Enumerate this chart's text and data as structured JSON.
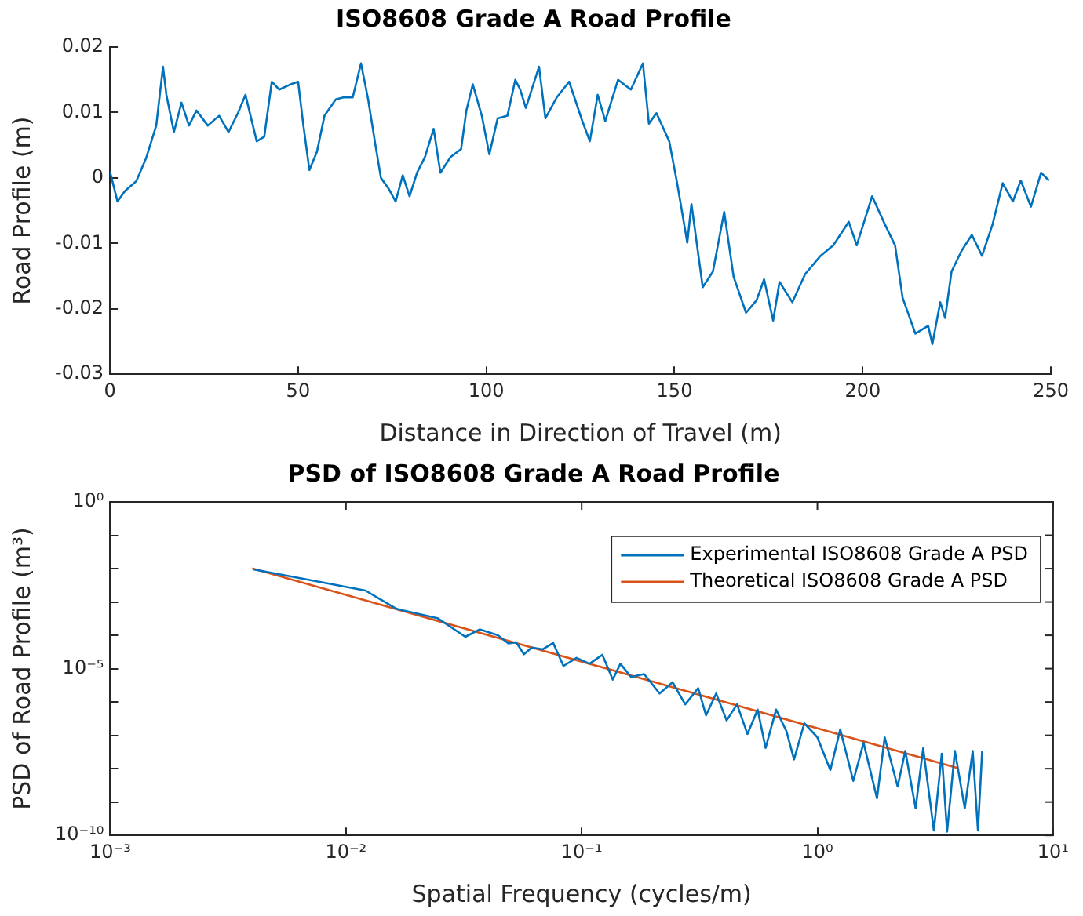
{
  "chart_data": [
    {
      "type": "line",
      "title": "ISO8608 Grade A Road Profile",
      "xlabel": "Distance in Direction of Travel (m)",
      "ylabel": "Road Profile (m)",
      "xlim": [
        0,
        250
      ],
      "xticks": [
        0,
        50,
        100,
        150,
        200,
        250
      ],
      "ylim": [
        -0.03,
        0.02
      ],
      "yticks": [
        -0.03,
        -0.02,
        -0.01,
        0,
        0.01,
        0.02
      ],
      "grid": false,
      "legend": false,
      "series": [
        {
          "color": "#0072bd",
          "x": [
            0,
            2,
            4,
            7,
            9.6,
            12.3,
            14.1,
            15,
            17,
            19,
            21,
            23,
            26,
            29,
            31.5,
            34,
            36,
            39,
            41,
            43,
            45,
            48,
            50,
            51.4,
            53,
            55,
            57,
            60,
            62,
            64.5,
            66.7,
            68.6,
            70.6,
            72,
            74,
            75.9,
            77.8,
            79.6,
            81.6,
            83.7,
            86,
            87.8,
            90.5,
            93.3,
            94.7,
            96.4,
            98.8,
            100.8,
            103,
            105.6,
            107.7,
            109,
            110.5,
            114,
            115.7,
            118.7,
            122,
            125.5,
            127.5,
            129.6,
            131.6,
            135,
            138.4,
            141.6,
            143.2,
            145.2,
            148.6,
            150.7,
            153.4,
            154.5,
            157.5,
            160.2,
            163.2,
            165.7,
            169,
            171.8,
            173.8,
            176.2,
            177.9,
            181.3,
            184.7,
            188.8,
            192.2,
            196.3,
            198.4,
            202.5,
            205.9,
            208.6,
            210.6,
            214,
            217.4,
            218.5,
            220.6,
            221.9,
            223.6,
            226.3,
            229,
            231.7,
            234.5,
            237.2,
            239.9,
            242,
            244.7,
            247.4,
            249.5
          ],
          "values": [
            0.001,
            -0.0036,
            -0.002,
            -0.0005,
            0.003,
            0.008,
            0.017,
            0.0127,
            0.007,
            0.0115,
            0.008,
            0.0103,
            0.008,
            0.0095,
            0.007,
            0.0099,
            0.0127,
            0.0056,
            0.0063,
            0.0147,
            0.0135,
            0.0143,
            0.0147,
            0.008,
            0.0012,
            0.004,
            0.0095,
            0.012,
            0.0123,
            0.0123,
            0.0175,
            0.012,
            0.0048,
            0,
            -0.0016,
            -0.0036,
            0.0004,
            -0.0028,
            0.0008,
            0.0032,
            0.0075,
            0.0008,
            0.0032,
            0.0044,
            0.0103,
            0.0143,
            0.0095,
            0.0036,
            0.0091,
            0.0095,
            0.015,
            0.0135,
            0.0107,
            0.017,
            0.0091,
            0.0123,
            0.0147,
            0.0087,
            0.0056,
            0.0127,
            0.0087,
            0.015,
            0.0135,
            0.0175,
            0.0083,
            0.0099,
            0.0056,
            -0.0008,
            -0.0099,
            -0.004,
            -0.0167,
            -0.0143,
            -0.0052,
            -0.0151,
            -0.0206,
            -0.0187,
            -0.0155,
            -0.0218,
            -0.0159,
            -0.019,
            -0.0147,
            -0.0119,
            -0.0103,
            -0.0067,
            -0.0103,
            -0.0028,
            -0.0071,
            -0.0103,
            -0.0183,
            -0.0238,
            -0.0226,
            -0.0254,
            -0.019,
            -0.0214,
            -0.0143,
            -0.0111,
            -0.0087,
            -0.0119,
            -0.0071,
            -0.0008,
            -0.0036,
            -0.0004,
            -0.0044,
            0.0008,
            -0.0004
          ]
        }
      ]
    },
    {
      "type": "line",
      "title": "PSD of ISO8608 Grade A Road Profile",
      "xlabel": "Spatial Frequency (cycles/m)",
      "ylabel": "PSD of Road Profile (m³)",
      "log": "xy",
      "xlim": [
        0.001,
        10
      ],
      "xticks": [
        {
          "value": 0.001,
          "label": "10⁻³"
        },
        {
          "value": 0.01,
          "label": "10⁻²"
        },
        {
          "value": 0.1,
          "label": "10⁻¹"
        },
        {
          "value": 1,
          "label": "10⁰"
        },
        {
          "value": 10,
          "label": "10¹"
        }
      ],
      "ylim": [
        1e-10,
        1
      ],
      "yticks": [
        {
          "value": 1e-10,
          "label": "10⁻¹⁰"
        },
        {
          "value": 1e-09,
          "label": null
        },
        {
          "value": 1e-08,
          "label": null
        },
        {
          "value": 1e-07,
          "label": null
        },
        {
          "value": 1e-06,
          "label": null
        },
        {
          "value": 1e-05,
          "label": "10⁻⁵"
        },
        {
          "value": 0.0001,
          "label": null
        },
        {
          "value": 0.001,
          "label": null
        },
        {
          "value": 0.01,
          "label": null
        },
        {
          "value": 0.1,
          "label": null
        },
        {
          "value": 1,
          "label": "10⁰"
        }
      ],
      "grid": false,
      "legend": "top right",
      "series": [
        {
          "name": "Experimental ISO8608 Grade A PSD",
          "color": "#0072bd",
          "x": [
            0.00405,
            0.0121,
            0.0164,
            0.0246,
            0.0321,
            0.0369,
            0.0441,
            0.0489,
            0.0527,
            0.0569,
            0.0614,
            0.0684,
            0.0757,
            0.0837,
            0.0951,
            0.108,
            0.1224,
            0.1355,
            0.146,
            0.162,
            0.184,
            0.214,
            0.243,
            0.275,
            0.312,
            0.337,
            0.372,
            0.412,
            0.456,
            0.505,
            0.558,
            0.603,
            0.668,
            0.74,
            0.796,
            0.88,
            1.0,
            1.135,
            1.25,
            1.42,
            1.57,
            1.79,
            1.93,
            2.19,
            2.36,
            2.61,
            2.81,
            3.12,
            3.37,
            3.55,
            3.83,
            4.22,
            4.56,
            4.8,
            5.0
          ],
          "values": [
            0.0095,
            0.0022,
            0.00062,
            0.00032,
            9e-05,
            0.00015,
            0.0001,
            5.7e-05,
            6.2e-05,
            2.7e-05,
            4.3e-05,
            3.8e-05,
            5.9e-05,
            1.2e-05,
            2.1e-05,
            1.4e-05,
            2.6e-05,
            4.7e-06,
            1.4e-05,
            5.6e-06,
            6.9e-06,
            1.8e-06,
            3.9e-06,
            8.5e-07,
            2.6e-06,
            4e-07,
            1.8e-06,
            2.8e-07,
            8.5e-07,
            1.1e-07,
            5.9e-07,
            4.2e-08,
            5.9e-07,
            1.3e-07,
            1.9e-08,
            2.3e-07,
            8.7e-08,
            9.1e-09,
            1.5e-07,
            4.3e-09,
            6e-08,
            1.3e-09,
            8.7e-08,
            2.9e-09,
            3.4e-08,
            6.5e-10,
            4.1e-08,
            1.4e-10,
            2.8e-08,
            1.3e-10,
            3.4e-08,
            6.5e-10,
            3.4e-08,
            1.4e-10,
            3.4e-08
          ]
        },
        {
          "name": "Theoretical ISO8608 Grade A PSD",
          "color": "#d95319",
          "x": [
            0.004,
            3.9
          ],
          "values": [
            0.0102,
            1.07e-08
          ]
        }
      ]
    }
  ]
}
